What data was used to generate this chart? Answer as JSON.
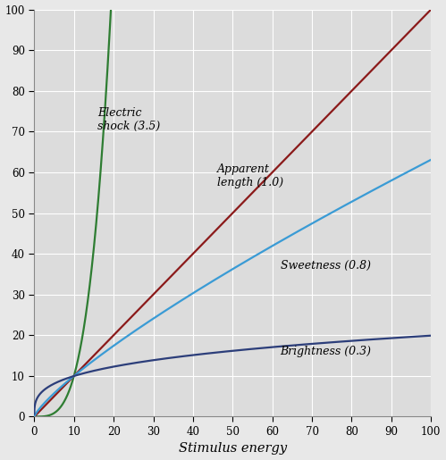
{
  "title": "",
  "xlabel": "Stimulus energy",
  "ylabel": "",
  "xlim": [
    0,
    100
  ],
  "ylim": [
    0,
    100
  ],
  "xticks": [
    0,
    10,
    20,
    30,
    40,
    50,
    60,
    70,
    80,
    90,
    100
  ],
  "yticks": [
    0,
    10,
    20,
    30,
    40,
    50,
    60,
    70,
    80,
    90,
    100
  ],
  "background_color": "#e8e8e8",
  "plot_bg_color": "#dcdcdc",
  "grid_color": "#ffffff",
  "curves": [
    {
      "label": "Electric shock (3.5)",
      "b": 3.5,
      "a": 0.003162,
      "color": "#2e7d32",
      "linewidth": 1.6,
      "annotation": "Electric\nshock (3.5)",
      "ann_x": 0.16,
      "ann_y": 0.73,
      "ann_ha": "left"
    },
    {
      "label": "Apparent length (1.0)",
      "b": 1.0,
      "a": 1.0,
      "color": "#8b1a1a",
      "linewidth": 1.6,
      "annotation": "Apparent\nlength (1.0)",
      "ann_x": 0.46,
      "ann_y": 0.59,
      "ann_ha": "left"
    },
    {
      "label": "Sweetness (0.8)",
      "b": 0.8,
      "a": 1.585,
      "color": "#3a9bd5",
      "linewidth": 1.6,
      "annotation": "Sweetness (0.8)",
      "ann_x": 0.62,
      "ann_y": 0.37,
      "ann_ha": "left"
    },
    {
      "label": "Brightness (0.3)",
      "b": 0.3,
      "a": 5.0,
      "color": "#2c3e7a",
      "linewidth": 1.6,
      "annotation": "Brightness (0.3)",
      "ann_x": 0.62,
      "ann_y": 0.16,
      "ann_ha": "left"
    }
  ],
  "ann_fontsize": 9,
  "tick_fontsize": 8.5,
  "label_fontsize": 10.5
}
